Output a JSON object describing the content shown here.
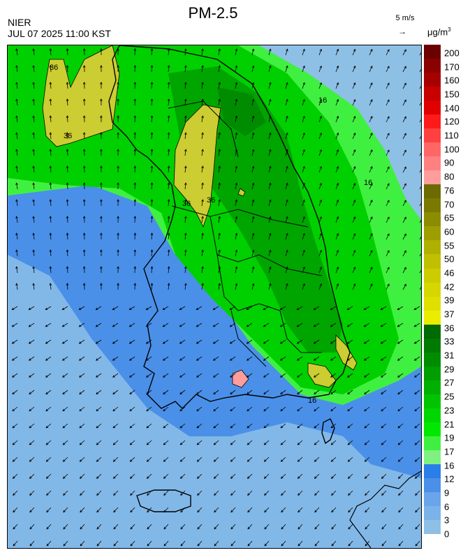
{
  "header": {
    "title": "PM-2.5",
    "org": "NIER",
    "timestamp": "JUL 07 2025 11:00 KST",
    "wind_ref": "5 m/s",
    "wind_ref_arrow": "→",
    "unit_base": "μg/m",
    "unit_exp": "3"
  },
  "contour_labels": [
    "16",
    "16",
    "16",
    "36",
    "36",
    "36",
    "36"
  ],
  "colorbar": {
    "labels": [
      "200",
      "170",
      "160",
      "150",
      "140",
      "120",
      "110",
      "100",
      "90",
      "80",
      "76",
      "70",
      "65",
      "60",
      "55",
      "50",
      "46",
      "42",
      "39",
      "37",
      "36",
      "33",
      "31",
      "29",
      "27",
      "25",
      "23",
      "21",
      "19",
      "17",
      "16",
      "12",
      "9",
      "6",
      "3",
      "0"
    ],
    "colors": [
      "#6b0000",
      "#8b0000",
      "#a60000",
      "#c80000",
      "#e00000",
      "#ff1a1a",
      "#ff4040",
      "#ff6666",
      "#ff8080",
      "#ff9c9c",
      "#6b6b00",
      "#7a7a00",
      "#8c8c00",
      "#9e9e00",
      "#b0b000",
      "#c0c000",
      "#cccc00",
      "#d6d600",
      "#e0e000",
      "#ecec00",
      "#006b00",
      "#007a00",
      "#008c00",
      "#009e00",
      "#00b000",
      "#00c400",
      "#00d600",
      "#00e800",
      "#40f040",
      "#80f080",
      "#2a7ee8",
      "#4a90e8",
      "#6aa4ea",
      "#7ab2ea",
      "#8ec0e6"
    ]
  },
  "colors": {
    "sea": "#8ec0e6",
    "green": "#00d000",
    "dark_green": "#009e00",
    "yellow": "#cccc33",
    "blue": "#4a90e8",
    "coast": "#000000"
  },
  "icons": [
    "wind-vector-icon"
  ]
}
